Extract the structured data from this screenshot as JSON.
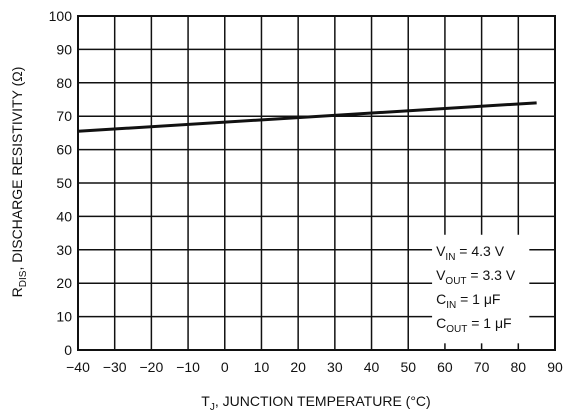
{
  "chart_data": {
    "type": "line",
    "title": "",
    "xlabel_main": "T",
    "xlabel_sub": "J",
    "xlabel_rest": ", JUNCTION TEMPERATURE (°C)",
    "ylabel_main": "R",
    "ylabel_sub": "DIS",
    "ylabel_rest": ", DISCHARGE RESISTIVITY (Ω)",
    "xlim": [
      -40,
      90
    ],
    "ylim": [
      0,
      100
    ],
    "xticks": [
      -40,
      -30,
      -20,
      -10,
      0,
      10,
      20,
      30,
      40,
      50,
      60,
      70,
      80,
      90
    ],
    "yticks": [
      0,
      10,
      20,
      30,
      40,
      50,
      60,
      70,
      80,
      90,
      100
    ],
    "grid": true,
    "series": [
      {
        "x": [
          -40,
          85
        ],
        "y": [
          65.5,
          74
        ]
      }
    ],
    "conditions": [
      {
        "main": "V",
        "sub": "IN",
        "rest": " = 4.3 V"
      },
      {
        "main": "V",
        "sub": "OUT",
        "rest": " = 3.3 V"
      },
      {
        "main": "C",
        "sub": "IN",
        "rest": " = 1 μF"
      },
      {
        "main": "C",
        "sub": "OUT",
        "rest": " = 1 μF"
      }
    ]
  }
}
